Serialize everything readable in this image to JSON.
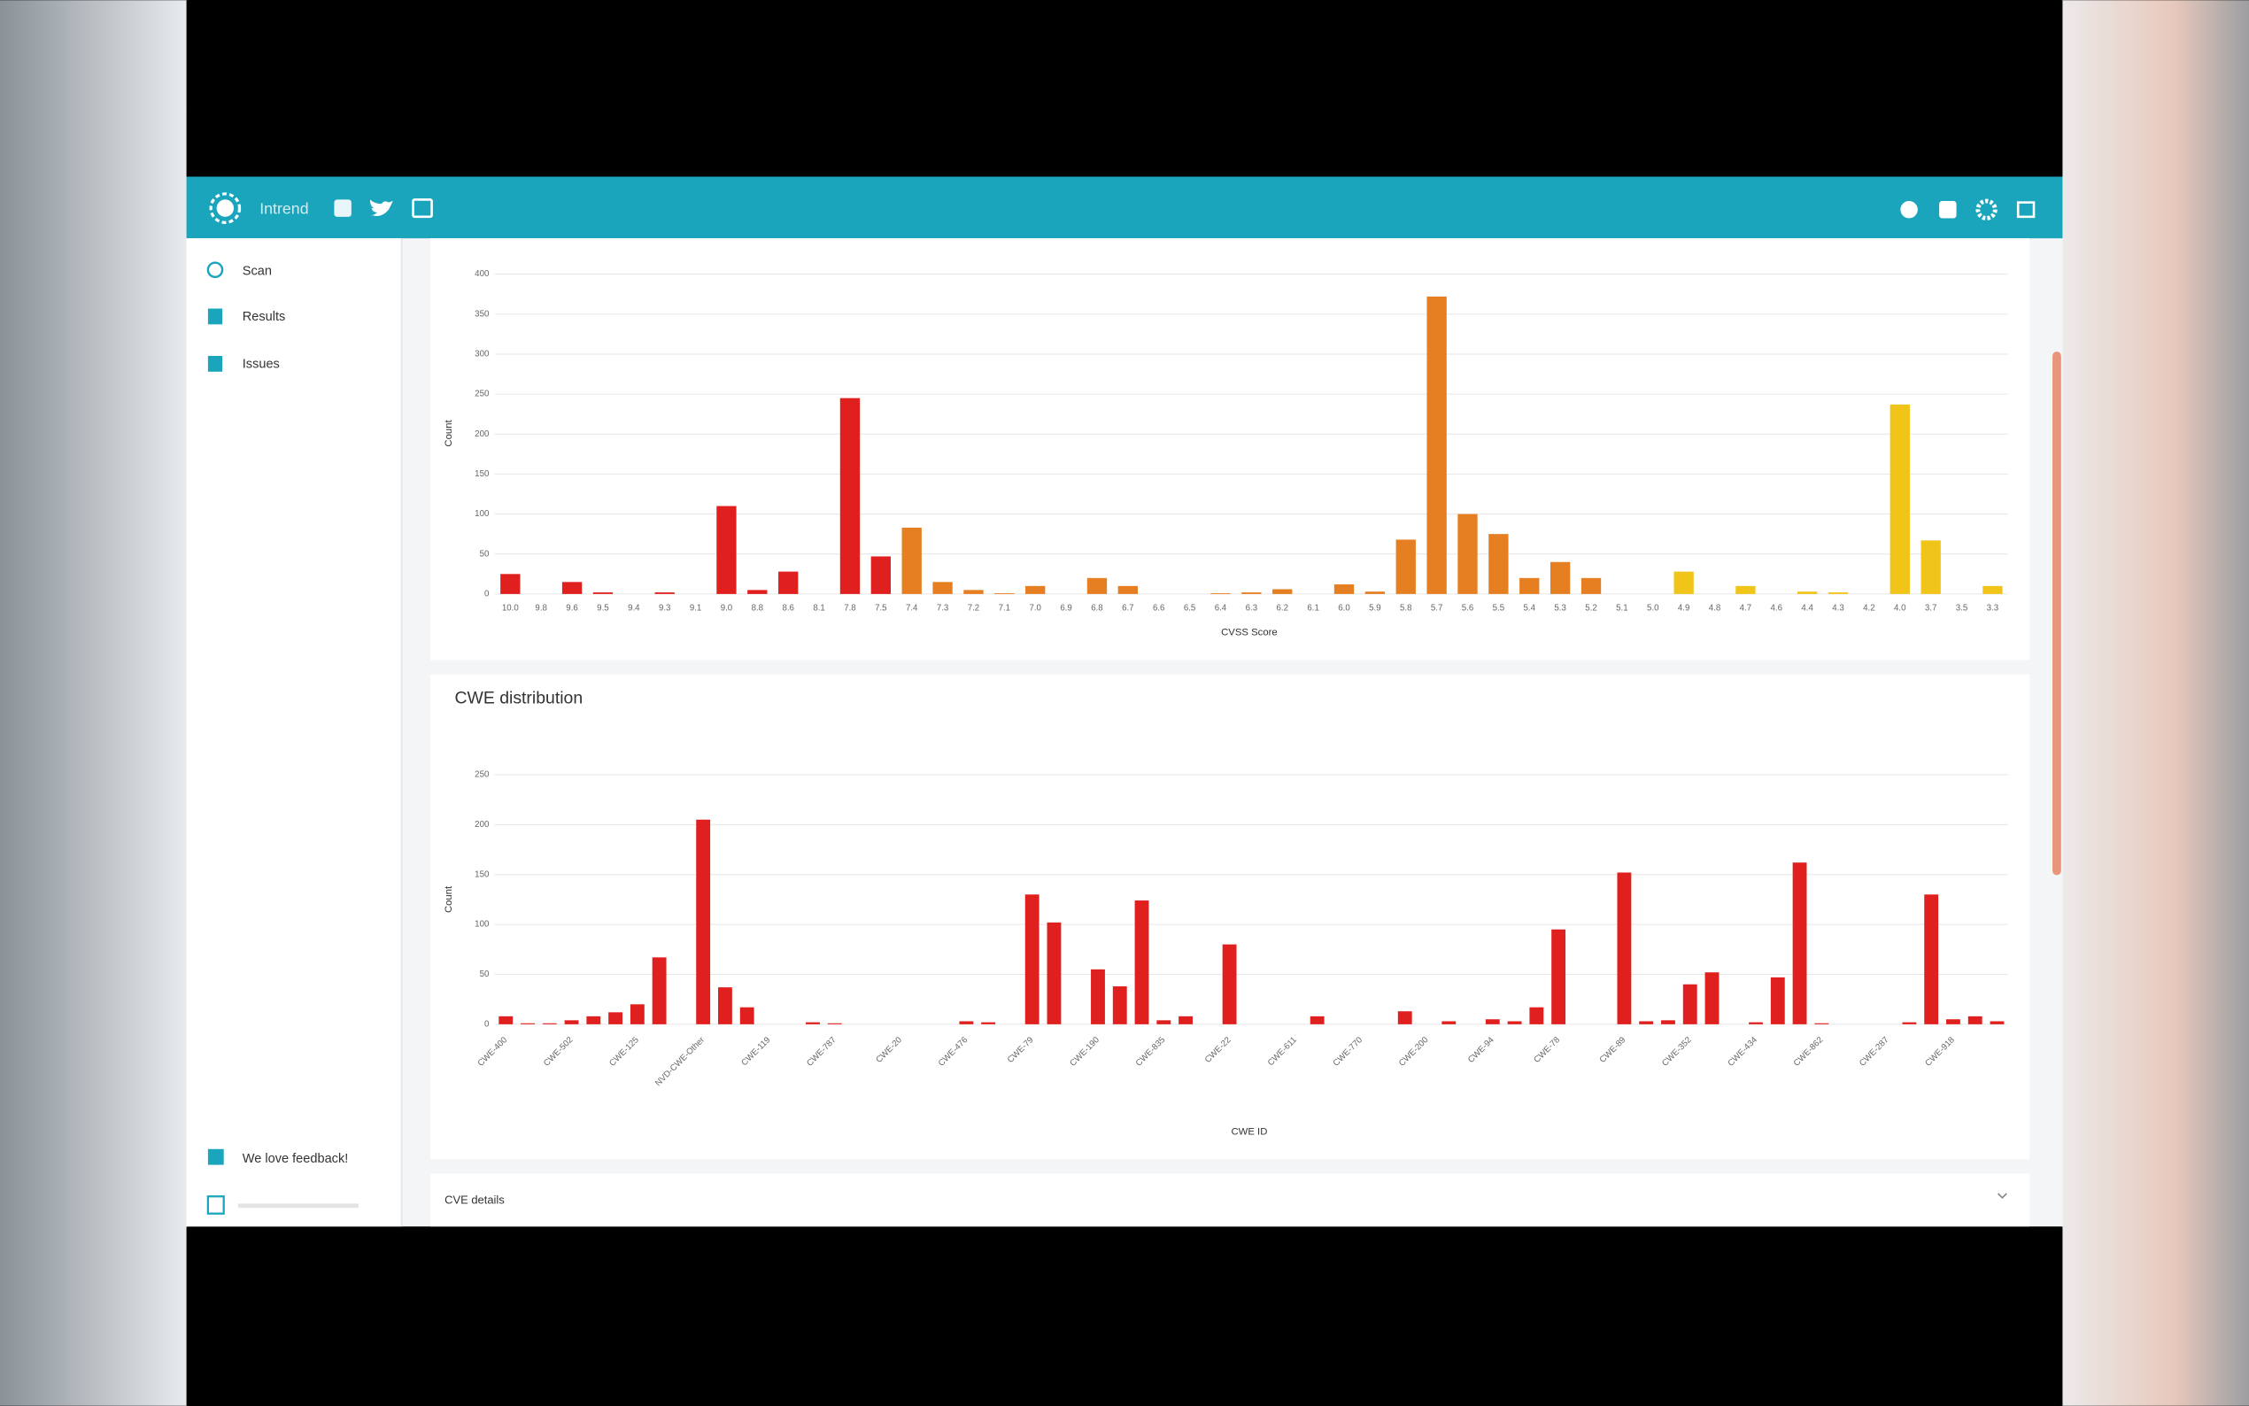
{
  "header": {
    "app_name": "Intrend"
  },
  "sidebar": {
    "items": [
      "Scan",
      "Results",
      "Issues"
    ],
    "feedback": "We love feedback!"
  },
  "details_panel": {
    "title": "CVE details"
  },
  "chart_data": [
    {
      "type": "bar",
      "x_label": "CVSS Score",
      "y_label": "Count",
      "categories": [
        "10.0",
        "9.8",
        "9.6",
        "9.5",
        "9.4",
        "9.3",
        "9.1",
        "9.0",
        "8.8",
        "8.6",
        "8.1",
        "7.8",
        "7.5",
        "7.4",
        "7.3",
        "7.2",
        "7.1",
        "7.0",
        "6.9",
        "6.8",
        "6.7",
        "6.6",
        "6.5",
        "6.4",
        "6.3",
        "6.2",
        "6.1",
        "6.0",
        "5.9",
        "5.8",
        "5.7",
        "5.6",
        "5.5",
        "5.4",
        "5.3",
        "5.2",
        "5.1",
        "5.0",
        "4.9",
        "4.8",
        "4.7",
        "4.6",
        "4.4",
        "4.3",
        "4.2",
        "4.0",
        "3.7",
        "3.5",
        "3.3"
      ],
      "values": [
        25,
        0,
        15,
        2,
        0,
        2,
        0,
        110,
        5,
        28,
        0,
        245,
        47,
        83,
        15,
        5,
        1,
        10,
        0,
        20,
        10,
        0,
        0,
        1,
        2,
        6,
        0,
        12,
        3,
        68,
        372,
        100,
        75,
        20,
        40,
        20,
        0,
        0,
        28,
        0,
        10,
        0,
        3,
        2,
        0,
        237,
        67,
        0,
        10
      ],
      "colors": [
        "#e0201e",
        "#e0201e",
        "#e0201e",
        "#e0201e",
        "#e0201e",
        "#e0201e",
        "#e0201e",
        "#e0201e",
        "#e0201e",
        "#e0201e",
        "#e0201e",
        "#e0201e",
        "#e0201e",
        "#e67e22",
        "#e67e22",
        "#e67e22",
        "#e67e22",
        "#e67e22",
        "#e67e22",
        "#e67e22",
        "#e67e22",
        "#e67e22",
        "#e67e22",
        "#e67e22",
        "#e67e22",
        "#e67e22",
        "#e67e22",
        "#e67e22",
        "#e67e22",
        "#e67e22",
        "#e67e22",
        "#e67e22",
        "#e67e22",
        "#e67e22",
        "#e67e22",
        "#e67e22",
        "#f0c419",
        "#f0c419",
        "#f0c419",
        "#f0c419",
        "#f0c419",
        "#f0c419",
        "#f0c419",
        "#f0c419",
        "#f0c419",
        "#f0c419",
        "#f0c419",
        "#f0c419",
        "#f0c419"
      ],
      "ylim": [
        0,
        400
      ],
      "yticks": [
        0,
        50,
        100,
        150,
        200,
        250,
        300,
        350,
        400
      ],
      "grid": true,
      "x_label_rotation": 0
    },
    {
      "type": "bar",
      "title": "CWE distribution",
      "x_label": "CWE ID",
      "y_label": "Count",
      "categories": [
        "CWE-400",
        null,
        null,
        "CWE-502",
        null,
        null,
        "CWE-125",
        null,
        null,
        "NVD-CWE-Other",
        null,
        null,
        "CWE-119",
        null,
        null,
        "CWE-787",
        null,
        null,
        "CWE-20",
        null,
        null,
        "CWE-476",
        null,
        null,
        "CWE-79",
        null,
        null,
        "CWE-190",
        null,
        null,
        "CWE-835",
        null,
        null,
        "CWE-22",
        null,
        null,
        "CWE-611",
        null,
        null,
        "CWE-770",
        null,
        null,
        "CWE-200",
        null,
        null,
        "CWE-94",
        null,
        null,
        "CWE-78",
        null,
        null,
        "CWE-89",
        null,
        null,
        "CWE-352",
        null,
        null,
        "CWE-434",
        null,
        null,
        "CWE-862",
        null,
        null,
        "CWE-287",
        null,
        null,
        "CWE-918",
        null,
        null
      ],
      "values": [
        8,
        1,
        1,
        4,
        8,
        12,
        20,
        67,
        0,
        205,
        37,
        17,
        0,
        0,
        2,
        1,
        0,
        0,
        0,
        0,
        0,
        3,
        2,
        0,
        130,
        102,
        0,
        55,
        38,
        124,
        4,
        8,
        0,
        80,
        0,
        0,
        0,
        8,
        0,
        0,
        0,
        13,
        0,
        3,
        0,
        5,
        3,
        17,
        95,
        0,
        0,
        152,
        3,
        4,
        40,
        52,
        0,
        2,
        47,
        162,
        1,
        0,
        0,
        0,
        2,
        130,
        5,
        8,
        3
      ],
      "color": "#e0201e",
      "ylim": [
        0,
        250
      ],
      "yticks": [
        0,
        50,
        100,
        150,
        200,
        250
      ],
      "grid": true,
      "x_label_rotation": -45
    }
  ]
}
